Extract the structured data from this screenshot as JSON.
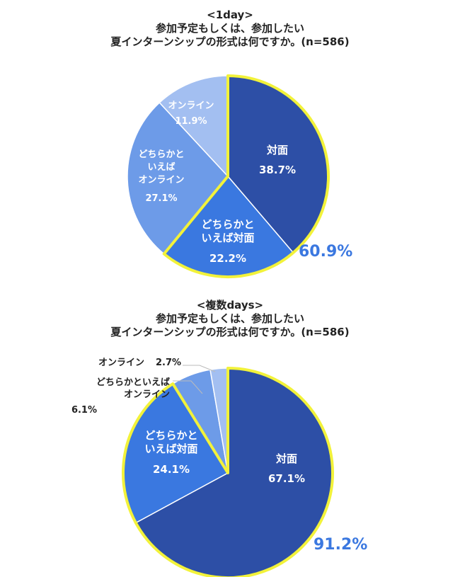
{
  "chart1": {
    "title_line1": "<1day>",
    "title_line2": "参加予定もしくは、参加したい",
    "title_line3": "夏インターンシップの形式は何ですか。(n=586)",
    "total_label": "60.9%",
    "slices": [
      {
        "label": "対面",
        "pct": "38.7%",
        "color": "#2d4fa6"
      },
      {
        "label": "どちらかと\nいえば対面",
        "pct": "22.2%",
        "color": "#3a78e0"
      },
      {
        "label": "どちらかと\nいえば\nオンライン",
        "pct": "27.1%",
        "color": "#6d9be8"
      },
      {
        "label": "オンライン",
        "pct": "11.9%",
        "color": "#a3bff1"
      }
    ]
  },
  "chart2": {
    "title_line1": "<複数days>",
    "title_line2": "参加予定もしくは、参加したい",
    "title_line3": "夏インターンシップの形式は何ですか。(n=586)",
    "total_label": "91.2%",
    "slices": [
      {
        "label": "対面",
        "pct": "67.1%",
        "color": "#2d4fa6"
      },
      {
        "label": "どちらかと\nいえば対面",
        "pct": "24.1%",
        "color": "#3a78e0"
      },
      {
        "label": "どちらかといえば\nオンライン",
        "pct": "6.1%",
        "color": "#6d9be8"
      },
      {
        "label": "オンライン",
        "pct": "2.7%",
        "color": "#a3bff1"
      }
    ]
  },
  "chart_data": [
    {
      "type": "pie",
      "title": "<1day> 参加予定もしくは、参加したい 夏インターンシップの形式は何ですか。(n=586)",
      "categories": [
        "対面",
        "どちらかといえば対面",
        "どちらかといえばオンライン",
        "オンライン"
      ],
      "values": [
        38.7,
        22.2,
        27.1,
        11.9
      ],
      "annotations": [
        "60.9%"
      ]
    },
    {
      "type": "pie",
      "title": "<複数days> 参加予定もしくは、参加したい 夏インターンシップの形式は何ですか。(n=586)",
      "categories": [
        "対面",
        "どちらかといえば対面",
        "どちらかといえばオンライン",
        "オンライン"
      ],
      "values": [
        67.1,
        24.1,
        6.1,
        2.7
      ],
      "annotations": [
        "91.2%"
      ]
    }
  ]
}
